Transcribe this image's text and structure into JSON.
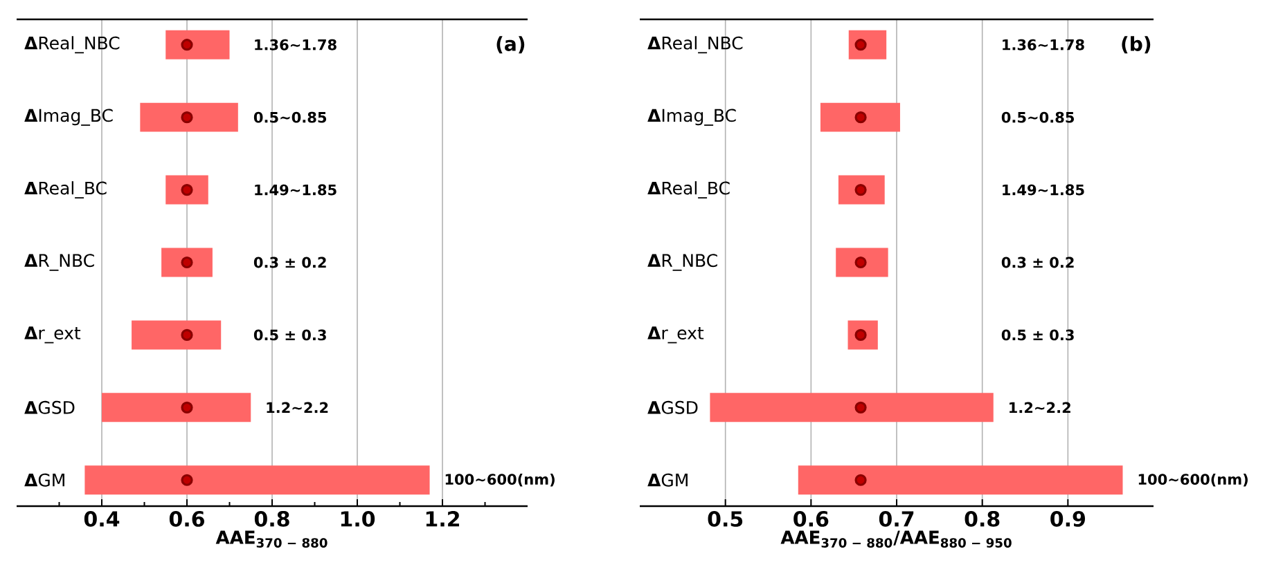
{
  "chart_data": [
    {
      "type": "bar",
      "orientation": "horizontal",
      "xlabel": "AAE$_{370 − 880}$",
      "categories": [
        "**Δ**Real_NBC",
        "**Δ**Imag_BC",
        "**Δ**Real_BC",
        "**Δ**R_NBC",
        "**Δ**r_ext",
        "**Δ**GSD",
        "**Δ**GM"
      ],
      "series": [
        {
          "type": "bar",
          "color": "#ff6666",
          "base": [
            0.55,
            0.49,
            0.55,
            0.54,
            0.47,
            0.4,
            0.36
          ],
          "values": [
            0.15,
            0.23,
            0.1,
            0.12,
            0.21,
            0.35,
            0.81
          ]
        },
        {
          "type": "scatter",
          "color": "#8b0000",
          "marker": "circle",
          "values": [
            0.6,
            0.6,
            0.6,
            0.6,
            0.6,
            0.6,
            0.6
          ]
        }
      ],
      "xlim": [
        0.2,
        1.4
      ],
      "xticks": [
        {
          "value": 0.3,
          "label": null
        },
        0.4,
        {
          "value": 0.5,
          "label": null
        },
        0.6,
        {
          "value": 0.7,
          "label": null
        },
        0.8,
        {
          "value": 0.9,
          "label": null
        },
        {
          "value": 1,
          "label": "1.0"
        },
        {
          "value": 1.1,
          "label": null
        },
        1.2,
        {
          "value": 1.3,
          "label": null
        }
      ],
      "grid": "x",
      "annotations": [
        "1.36~1.78",
        "0.5~0.85",
        "1.49~1.85",
        "0.3 ± 0.2",
        "0.5 ± 0.3",
        "1.2~2.2",
        "100~600(nm)",
        "(a)"
      ]
    },
    {
      "type": "bar",
      "orientation": "horizontal",
      "xlabel": "AAE$_{370 − 880}$/AAE$_{880 − 950}$",
      "categories": [
        "**Δ**Real_NBC",
        "**Δ**Imag_BC",
        "**Δ**Real_BC",
        "**Δ**R_NBC",
        "**Δ**r_ext",
        "**Δ**GSD",
        "**Δ**GM"
      ],
      "series": [
        {
          "type": "bar",
          "color": "#ff6666",
          "base": [
            0.644,
            0.611,
            0.632,
            0.629,
            0.643,
            0.482,
            0.585
          ],
          "values": [
            0.044,
            0.093,
            0.054,
            0.061,
            0.035,
            0.331,
            0.379
          ]
        },
        {
          "type": "scatter",
          "color": "#8b0000",
          "marker": "circle",
          "values": [
            0.658,
            0.658,
            0.658,
            0.658,
            0.658,
            0.658,
            0.658
          ]
        }
      ],
      "xlim": [
        0.4,
        1.0
      ],
      "xticks": [
        0.5,
        0.6,
        0.7,
        0.8,
        0.9
      ],
      "grid": "x",
      "annotations": [
        "1.36~1.78",
        "0.5~0.85",
        "1.49~1.85",
        "0.3 ± 0.2",
        "0.5 ± 0.3",
        "1.2~2.2",
        "100~600(nm)",
        "(b)"
      ]
    }
  ]
}
